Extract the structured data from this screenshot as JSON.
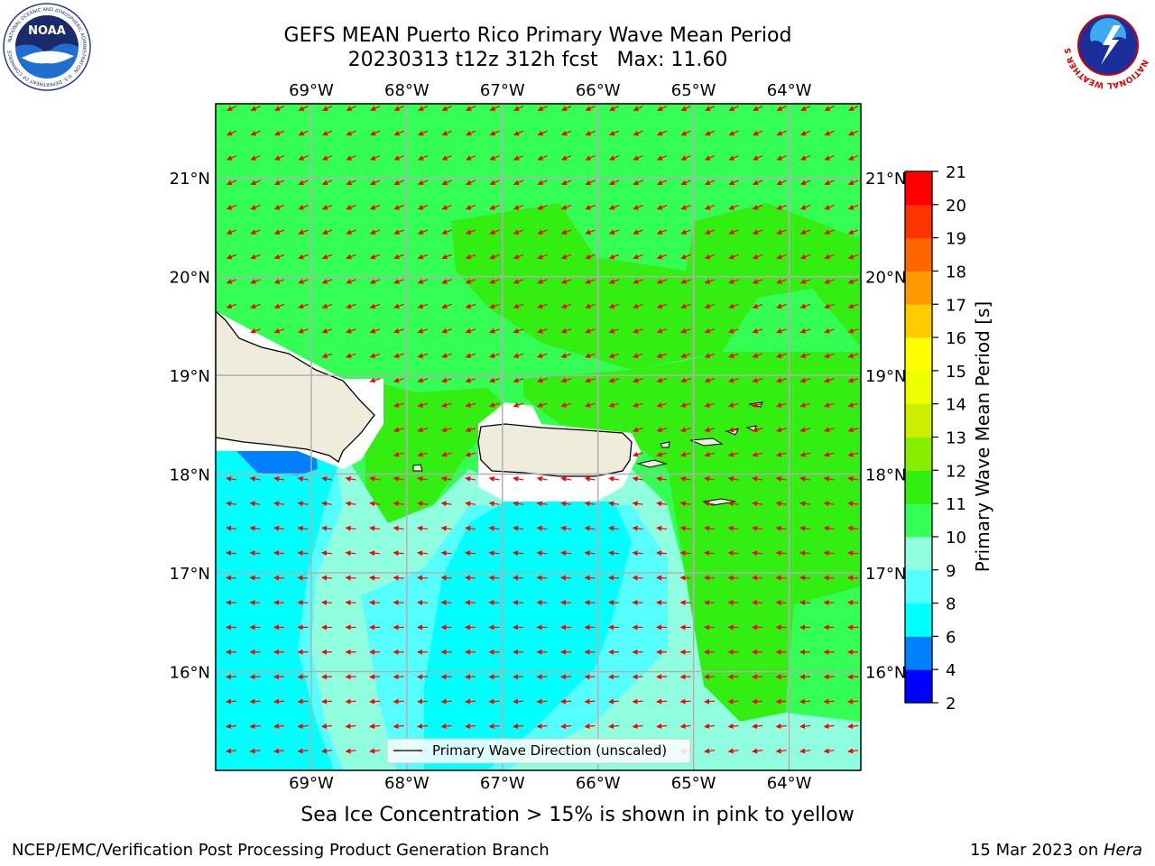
{
  "title": {
    "line1": "GEFS MEAN Puerto Rico Primary Wave Mean Period",
    "line2": "20230313 t12z 312h fcst   Max: 11.60"
  },
  "logos": {
    "left": {
      "name": "NOAA",
      "ring_text": "NATIONAL OCEANIC AND ATMOSPHERIC ADMINISTRATION · U.S. DEPARTMENT OF COMMERCE"
    },
    "right": {
      "name": "",
      "ring_text": "NATIONAL WEATHER SERVICE"
    }
  },
  "map": {
    "lon_ticks": [
      "69°W",
      "68°W",
      "67°W",
      "66°W",
      "65°W",
      "64°W"
    ],
    "lat_ticks": [
      "21°N",
      "20°N",
      "19°N",
      "18°N",
      "17°N",
      "16°N"
    ],
    "lon_values": [
      -69,
      -68,
      -67,
      -66,
      -65,
      -64
    ],
    "lat_values": [
      21,
      20,
      19,
      18,
      17,
      16
    ],
    "lon_range": [
      -70.0,
      -63.25
    ],
    "lat_range": [
      15.0,
      21.75
    ],
    "legend_label": "Primary Wave Direction (unscaled)",
    "arrow_color": "#ff0000",
    "land_color": "#efecdc",
    "mean_wave_direction_deg_from": 65
  },
  "colorbar": {
    "label": "Primary Wave Mean Period [s]",
    "tick_labels": [
      "2",
      "4",
      "6",
      "8",
      "9",
      "10",
      "11",
      "12",
      "13",
      "14",
      "15",
      "16",
      "17",
      "18",
      "19",
      "20",
      "21"
    ],
    "levels": [
      2,
      4,
      6,
      8,
      9,
      10,
      11,
      12,
      13,
      14,
      15,
      16,
      17,
      18,
      19,
      20,
      21
    ],
    "colors": [
      "#0000ff",
      "#0080ff",
      "#00ffff",
      "#55ffff",
      "#90ffe0",
      "#33ff55",
      "#33ee11",
      "#88ee00",
      "#ccee00",
      "#eeff00",
      "#ffff00",
      "#ffcc00",
      "#ff9900",
      "#ff6600",
      "#ff3300",
      "#ff0000"
    ]
  },
  "caption": "Sea Ice Concentration > 15% is shown in pink to yellow",
  "footer": {
    "left": "NCEP/EMC/Verification Post Processing Product Generation Branch",
    "right_prefix": "15 Mar 2023 on ",
    "right_host": "Hera"
  }
}
